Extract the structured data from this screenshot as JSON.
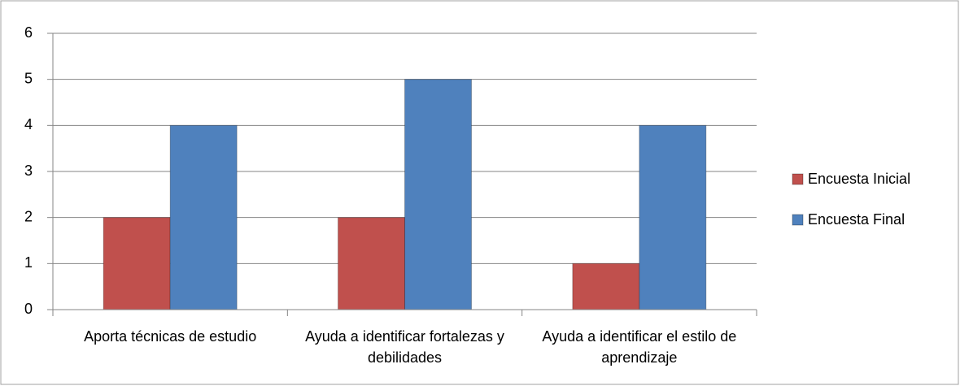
{
  "chart_data": {
    "type": "bar",
    "categories": [
      "Aporta técnicas de estudio",
      "Ayuda a identificar fortalezas y debilidades",
      "Ayuda a identificar el estilo de aprendizaje"
    ],
    "series": [
      {
        "name": "Encuesta Inicial",
        "color": "#c0504d",
        "values": [
          2,
          2,
          1
        ]
      },
      {
        "name": "Encuesta Final",
        "color": "#4f81bd",
        "values": [
          4,
          5,
          4
        ]
      }
    ],
    "ylim": [
      0,
      6
    ],
    "yticks": [
      0,
      1,
      2,
      3,
      4,
      5,
      6
    ],
    "grid": true,
    "legend": "right"
  }
}
